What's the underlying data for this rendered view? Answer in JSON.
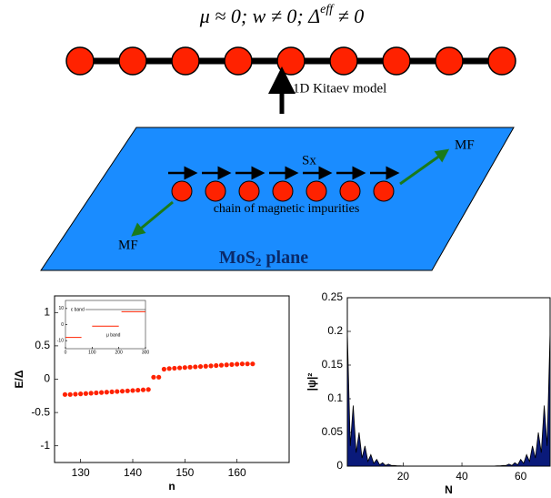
{
  "diagram": {
    "formula": {
      "before": "μ ≈ 0; w ≠ 0; Δ",
      "sup": "eff",
      "after": " ≠ 0"
    },
    "model_label": "1D Kitaev model",
    "spin_label": "Sx",
    "mf_right": "MF",
    "mf_left": "MF",
    "chain_label": "chain of magnetic impurities",
    "plane_label": {
      "main": "MoS",
      "sub": "2",
      "rest": " plane"
    }
  },
  "chart_data": [
    {
      "type": "scatter",
      "xlabel": "n",
      "ylabel": "E/Δ",
      "color": "#ff2200",
      "x": [
        127,
        128,
        129,
        130,
        131,
        132,
        133,
        134,
        135,
        136,
        137,
        138,
        139,
        140,
        141,
        142,
        143,
        144,
        145,
        146,
        147,
        148,
        149,
        150,
        151,
        152,
        153,
        154,
        155,
        156,
        157,
        158,
        159,
        160,
        161,
        162,
        163
      ],
      "values": [
        -0.23,
        -0.23,
        -0.225,
        -0.22,
        -0.215,
        -0.21,
        -0.205,
        -0.2,
        -0.195,
        -0.19,
        -0.185,
        -0.18,
        -0.175,
        -0.17,
        -0.165,
        -0.16,
        -0.155,
        0.03,
        0.03,
        0.15,
        0.16,
        0.165,
        0.17,
        0.175,
        0.18,
        0.185,
        0.19,
        0.195,
        0.2,
        0.205,
        0.21,
        0.215,
        0.22,
        0.225,
        0.23,
        0.23,
        0.23
      ],
      "xlim": [
        125,
        170
      ],
      "ylim": [
        -1.25,
        1.25
      ],
      "xticks": [
        130,
        140,
        150,
        160
      ],
      "yticks": [
        -1,
        -0.5,
        0,
        0.5,
        1
      ]
    },
    {
      "type": "line",
      "annotations": [
        "ε band",
        "μ band"
      ],
      "series": [
        {
          "color": "#ff2200",
          "x": [
            0,
            60
          ],
          "values": [
            -8,
            -8
          ]
        },
        {
          "color": "#ff2200",
          "x": [
            100,
            200
          ],
          "values": [
            -1,
            -1
          ]
        },
        {
          "color": "#ff2200",
          "x": [
            210,
            300
          ],
          "values": [
            8,
            8
          ]
        }
      ],
      "xlim": [
        0,
        300
      ],
      "ylim": [
        -15,
        15
      ],
      "xticks": [
        0,
        100,
        200,
        300
      ],
      "yticks": [
        -10,
        0,
        10
      ]
    },
    {
      "type": "area",
      "xlabel": "N",
      "ylabel": "|ψ|²",
      "color": "#0a1a7a",
      "x": [
        1,
        2,
        3,
        4,
        5,
        6,
        7,
        8,
        9,
        10,
        11,
        12,
        13,
        14,
        15,
        16,
        17,
        18,
        19,
        20,
        21,
        22,
        23,
        24,
        25,
        26,
        27,
        28,
        29,
        30,
        31,
        32,
        33,
        34,
        35,
        36,
        37,
        38,
        39,
        40,
        41,
        42,
        43,
        44,
        45,
        46,
        47,
        48,
        49,
        50,
        51,
        52,
        53,
        54,
        55,
        56,
        57,
        58,
        59,
        60,
        61,
        62,
        63,
        64,
        65,
        66,
        67,
        68,
        69,
        70
      ],
      "values": [
        0.2,
        0.03,
        0.09,
        0.02,
        0.05,
        0.012,
        0.03,
        0.007,
        0.017,
        0.004,
        0.01,
        0.002,
        0.005,
        0.001,
        0.003,
        0.001,
        0.001,
        0.0005,
        0.0005,
        0.0002,
        0,
        0,
        0,
        0,
        0,
        0,
        0,
        0,
        0,
        0,
        0,
        0,
        0,
        0,
        0,
        0,
        0,
        0,
        0,
        0,
        0,
        0,
        0,
        0,
        0,
        0,
        0,
        0,
        0,
        0,
        0.0002,
        0.0005,
        0.0005,
        0.001,
        0.001,
        0.003,
        0.001,
        0.005,
        0.002,
        0.01,
        0.004,
        0.017,
        0.007,
        0.03,
        0.012,
        0.05,
        0.02,
        0.09,
        0.03,
        0.2
      ],
      "xlim": [
        1,
        70
      ],
      "ylim": [
        0,
        0.25
      ],
      "xticks": [
        20,
        40,
        60
      ],
      "yticks": [
        0,
        0.05,
        0.1,
        0.15,
        0.2,
        0.25
      ]
    }
  ]
}
